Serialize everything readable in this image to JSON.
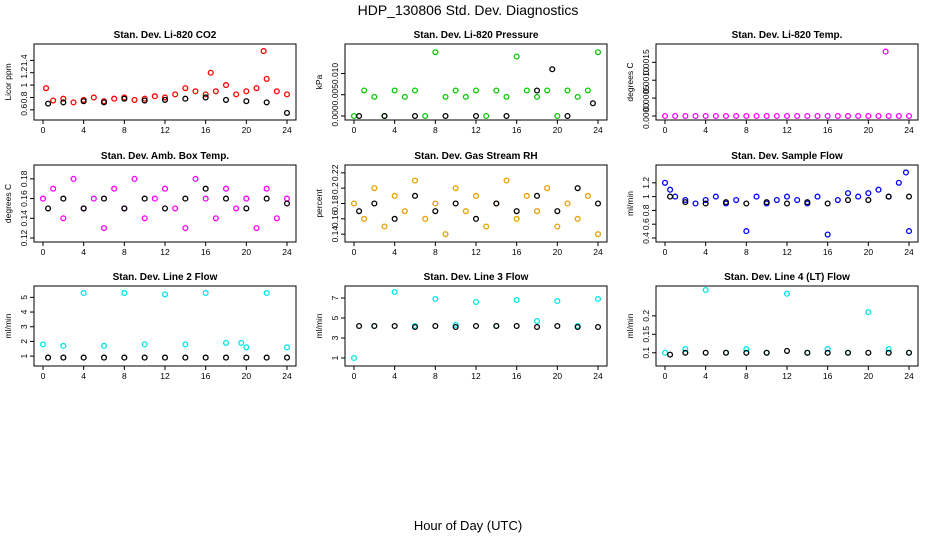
{
  "figure": {
    "title": "HDP_130806  Std. Dev. Diagnostics",
    "xlabel": "Hour of Day (UTC)"
  },
  "chart_data": [
    {
      "type": "scatter",
      "title": "Stan. Dev. Li-820 CO2",
      "ylabel": "Licor ppm",
      "x_ticks": [
        0,
        4,
        8,
        12,
        16,
        20,
        24
      ],
      "y_ticks": [
        0.6,
        0.8,
        1.0,
        1.2,
        1.4
      ],
      "xlim": [
        0,
        24
      ],
      "ylim": [
        0.5,
        1.6
      ],
      "color": "#ff0000",
      "series": [
        {
          "x": [
            0.3,
            1,
            2,
            3,
            4,
            5,
            6,
            7,
            8,
            9,
            10,
            11,
            12,
            13,
            14,
            15,
            16,
            16.5,
            17,
            18,
            19,
            20,
            21,
            21.7,
            22,
            23,
            24
          ],
          "y": [
            0.95,
            0.75,
            0.78,
            0.72,
            0.76,
            0.8,
            0.74,
            0.78,
            0.8,
            0.76,
            0.78,
            0.82,
            0.8,
            0.85,
            0.95,
            0.9,
            0.85,
            1.2,
            0.9,
            1.0,
            0.85,
            0.9,
            0.95,
            1.55,
            1.1,
            0.9,
            0.85
          ]
        },
        {
          "x": [
            0.5,
            2,
            4,
            6,
            8,
            10,
            12,
            14,
            16,
            18,
            20,
            22,
            24
          ],
          "y": [
            0.7,
            0.72,
            0.74,
            0.72,
            0.78,
            0.75,
            0.76,
            0.78,
            0.8,
            0.76,
            0.74,
            0.72,
            0.55
          ]
        }
      ]
    },
    {
      "type": "scatter",
      "title": "Stan. Dev. Li-820 Pressure",
      "ylabel": "kPa",
      "x_ticks": [
        0,
        4,
        8,
        12,
        16,
        20,
        24
      ],
      "y_ticks": [
        "0.000",
        "0.005",
        "0.010"
      ],
      "xlim": [
        0,
        24
      ],
      "ylim": [
        0,
        0.016
      ],
      "color": "#00cc00",
      "series": [
        {
          "x": [
            0,
            1,
            2,
            3,
            4,
            5,
            6,
            7,
            8,
            9,
            10,
            11,
            12,
            13,
            14,
            15,
            16,
            17,
            18,
            19,
            20,
            21,
            22,
            23,
            24
          ],
          "y": [
            0.0,
            0.006,
            0.0045,
            0.0,
            0.006,
            0.0045,
            0.006,
            0.0,
            0.015,
            0.0045,
            0.006,
            0.0045,
            0.006,
            0.0,
            0.006,
            0.0045,
            0.014,
            0.006,
            0.0045,
            0.006,
            0.0,
            0.006,
            0.0045,
            0.006,
            0.015
          ]
        },
        {
          "x": [
            0.5,
            3,
            6,
            9,
            12,
            15,
            18,
            19.5,
            21,
            23.5
          ],
          "y": [
            0.0,
            0.0,
            0.0,
            0.0,
            0.0,
            0.0,
            0.006,
            0.011,
            0.0,
            0.003
          ]
        }
      ]
    },
    {
      "type": "scatter",
      "title": "Stan. Dev. Li-820 Temp.",
      "ylabel": "degrees C",
      "x_ticks": [
        0,
        4,
        8,
        12,
        16,
        20,
        24
      ],
      "y_ticks": [
        "0.0000",
        "0.0005",
        "0.0010",
        "0.0015"
      ],
      "xlim": [
        0,
        24
      ],
      "ylim": [
        0,
        0.0019
      ],
      "color": "#ff00ff",
      "series": [
        {
          "x": [
            0,
            1,
            2,
            3,
            4,
            5,
            6,
            7,
            8,
            9,
            10,
            11,
            12,
            13,
            14,
            15,
            16,
            17,
            18,
            19,
            20,
            21,
            21.7,
            22,
            23,
            24
          ],
          "y": [
            0,
            0,
            0,
            0,
            0,
            0,
            0,
            0,
            0,
            0,
            0,
            0,
            0,
            0,
            0,
            0,
            0,
            0,
            0,
            0,
            0,
            0,
            0.0018,
            0,
            0,
            0
          ]
        }
      ]
    },
    {
      "type": "scatter",
      "title": "Stan. Dev. Amb. Box Temp.",
      "ylabel": "degrees C",
      "x_ticks": [
        0,
        4,
        8,
        12,
        16,
        20,
        24
      ],
      "y_ticks": [
        0.12,
        0.14,
        0.16,
        0.18
      ],
      "xlim": [
        0,
        24
      ],
      "ylim": [
        0.12,
        0.19
      ],
      "color": "#ff00ff",
      "series": [
        {
          "x": [
            0,
            1,
            2,
            3,
            4,
            5,
            6,
            7,
            8,
            9,
            10,
            11,
            12,
            13,
            14,
            15,
            16,
            17,
            18,
            19,
            20,
            21,
            22,
            23,
            24
          ],
          "y": [
            0.16,
            0.17,
            0.14,
            0.18,
            0.15,
            0.16,
            0.13,
            0.17,
            0.15,
            0.18,
            0.14,
            0.16,
            0.17,
            0.15,
            0.13,
            0.18,
            0.16,
            0.14,
            0.17,
            0.15,
            0.16,
            0.13,
            0.17,
            0.14,
            0.16
          ]
        },
        {
          "x": [
            0.5,
            2,
            4,
            6,
            8,
            10,
            12,
            14,
            16,
            18,
            20,
            22,
            24
          ],
          "y": [
            0.15,
            0.16,
            0.15,
            0.16,
            0.15,
            0.16,
            0.15,
            0.16,
            0.17,
            0.16,
            0.15,
            0.16,
            0.155
          ]
        }
      ]
    },
    {
      "type": "scatter",
      "title": "Stan. Dev. Gas Stream RH",
      "ylabel": "percent",
      "x_ticks": [
        0,
        4,
        8,
        12,
        16,
        20,
        24
      ],
      "y_ticks": [
        0.14,
        0.16,
        0.18,
        0.2,
        0.22
      ],
      "xlim": [
        0,
        24
      ],
      "ylim": [
        0.135,
        0.225
      ],
      "color": "#e6a000",
      "series": [
        {
          "x": [
            0,
            1,
            2,
            3,
            4,
            5,
            6,
            7,
            8,
            9,
            10,
            11,
            12,
            13,
            14,
            15,
            16,
            17,
            18,
            19,
            20,
            21,
            22,
            23,
            24
          ],
          "y": [
            0.18,
            0.16,
            0.2,
            0.15,
            0.19,
            0.17,
            0.21,
            0.16,
            0.18,
            0.14,
            0.2,
            0.17,
            0.19,
            0.15,
            0.18,
            0.21,
            0.16,
            0.19,
            0.17,
            0.2,
            0.15,
            0.18,
            0.16,
            0.19,
            0.14
          ]
        },
        {
          "x": [
            0.5,
            2,
            4,
            6,
            8,
            10,
            12,
            14,
            16,
            18,
            20,
            22,
            24
          ],
          "y": [
            0.17,
            0.18,
            0.16,
            0.19,
            0.17,
            0.18,
            0.16,
            0.18,
            0.17,
            0.19,
            0.17,
            0.2,
            0.18
          ]
        }
      ]
    },
    {
      "type": "scatter",
      "title": "Stan. Dev. Sample Flow",
      "ylabel": "ml/min",
      "x_ticks": [
        0,
        4,
        8,
        12,
        16,
        20,
        24
      ],
      "y_ticks": [
        0.4,
        0.6,
        0.8,
        1.0,
        1.2
      ],
      "xlim": [
        0,
        24
      ],
      "ylim": [
        0.4,
        1.4
      ],
      "color": "#0000ff",
      "series": [
        {
          "x": [
            0,
            0.5,
            1,
            2,
            3,
            4,
            5,
            6,
            7,
            8,
            9,
            10,
            11,
            12,
            13,
            14,
            15,
            16,
            17,
            18,
            19,
            20,
            21,
            22,
            23,
            23.7,
            24
          ],
          "y": [
            1.2,
            1.1,
            1.0,
            0.95,
            0.9,
            0.95,
            1.0,
            0.9,
            0.95,
            0.5,
            1.0,
            0.9,
            0.95,
            1.0,
            0.95,
            0.9,
            1.0,
            0.45,
            0.95,
            1.05,
            1.0,
            1.05,
            1.1,
            1.0,
            1.2,
            1.35,
            0.5
          ]
        },
        {
          "x": [
            0.5,
            2,
            4,
            6,
            8,
            10,
            12,
            14,
            16,
            18,
            20,
            22,
            24
          ],
          "y": [
            1.0,
            0.92,
            0.9,
            0.92,
            0.9,
            0.92,
            0.9,
            0.92,
            0.9,
            0.95,
            0.95,
            1.0,
            1.0
          ]
        }
      ]
    },
    {
      "type": "scatter",
      "title": "Stan. Dev. Line 2 Flow",
      "ylabel": "ml/min",
      "x_ticks": [
        0,
        4,
        8,
        12,
        16,
        20,
        24
      ],
      "y_ticks": [
        1,
        2,
        3,
        4,
        5
      ],
      "xlim": [
        0,
        24
      ],
      "ylim": [
        0.6,
        5.5
      ],
      "color": "#00e5e5",
      "series": [
        {
          "x": [
            0,
            2,
            4,
            6,
            8,
            10,
            12,
            14,
            16,
            18,
            19.5,
            20,
            22,
            24
          ],
          "y": [
            1.8,
            1.7,
            5.3,
            1.7,
            5.3,
            1.8,
            5.2,
            1.8,
            5.3,
            1.9,
            1.9,
            1.6,
            5.3,
            1.6
          ]
        },
        {
          "x": [
            0.5,
            2,
            4,
            6,
            8,
            10,
            12,
            14,
            16,
            18,
            20,
            22,
            24
          ],
          "y": [
            0.9,
            0.9,
            0.9,
            0.9,
            0.9,
            0.9,
            0.9,
            0.9,
            0.9,
            0.9,
            0.9,
            0.9,
            0.9
          ]
        }
      ]
    },
    {
      "type": "scatter",
      "title": "Stan. Dev. Line 3 Flow",
      "ylabel": "ml/min",
      "x_ticks": [
        0,
        4,
        8,
        12,
        16,
        20,
        24
      ],
      "y_ticks": [
        1,
        3,
        5,
        7
      ],
      "xlim": [
        0,
        24
      ],
      "ylim": [
        0.6,
        7.8
      ],
      "color": "#00e5e5",
      "series": [
        {
          "x": [
            0,
            2,
            4,
            6,
            8,
            10,
            12,
            14,
            16,
            18,
            20,
            22,
            24
          ],
          "y": [
            1.0,
            4.2,
            7.6,
            4.2,
            6.9,
            4.3,
            6.6,
            4.2,
            6.8,
            4.7,
            6.7,
            4.2,
            6.9
          ]
        },
        {
          "x": [
            0.5,
            2,
            4,
            6,
            8,
            10,
            12,
            14,
            16,
            18,
            20,
            22,
            24
          ],
          "y": [
            4.2,
            4.2,
            4.2,
            4.1,
            4.2,
            4.1,
            4.2,
            4.2,
            4.2,
            4.1,
            4.2,
            4.1,
            4.1
          ]
        }
      ]
    },
    {
      "type": "scatter",
      "title": "Stan. Dev. Line 4 (LT) Flow",
      "ylabel": "ml/min",
      "x_ticks": [
        0,
        4,
        8,
        12,
        16,
        20,
        24
      ],
      "y_ticks": [
        0.1,
        0.15,
        0.2
      ],
      "xlim": [
        0,
        24
      ],
      "ylim": [
        0.075,
        0.27
      ],
      "color": "#00e5e5",
      "series": [
        {
          "x": [
            0,
            2,
            4,
            6,
            8,
            10,
            12,
            14,
            16,
            18,
            20,
            22,
            24
          ],
          "y": [
            0.1,
            0.11,
            0.27,
            0.1,
            0.11,
            0.1,
            0.26,
            0.1,
            0.11,
            0.1,
            0.21,
            0.11,
            0.1
          ]
        },
        {
          "x": [
            0.5,
            2,
            4,
            6,
            8,
            10,
            12,
            14,
            16,
            18,
            20,
            22,
            24
          ],
          "y": [
            0.095,
            0.1,
            0.1,
            0.1,
            0.1,
            0.1,
            0.105,
            0.1,
            0.1,
            0.1,
            0.1,
            0.1,
            0.1
          ]
        }
      ]
    }
  ]
}
